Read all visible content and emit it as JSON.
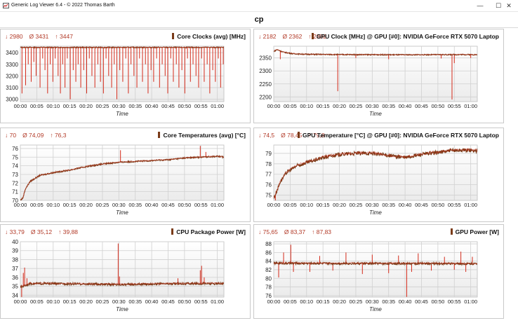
{
  "window": {
    "title": "Generic Log Viewer 6.4 - © 2022 Thomas Barth",
    "controls": {
      "minimize": "—",
      "maximize": "☐",
      "close": "✕"
    }
  },
  "header": {
    "title": "cp"
  },
  "colors": {
    "series": "#7a3b18",
    "spike": "#d42a1a",
    "stats": "#b23a28",
    "grid": "#d0d0d0",
    "plot_bg_top": "#ffffff",
    "plot_bg_bottom": "#ebebeb"
  },
  "panels": [
    {
      "id": "core-clocks",
      "title": "Core Clocks (avg) [MHz]",
      "stats": {
        "min": "↓ 2980",
        "avg": "Ø 3431",
        "max": "↑ 3447"
      },
      "chart_data": {
        "type": "line",
        "xlabel": "Time",
        "x_ticks": [
          "00:00",
          "00:05",
          "00:10",
          "00:15",
          "00:20",
          "00:25",
          "00:30",
          "00:35",
          "00:40",
          "00:45",
          "00:50",
          "00:55",
          "01:00"
        ],
        "y_ticks": [
          3000,
          3100,
          3200,
          3300,
          3400
        ],
        "ylim": [
          2980,
          3455
        ],
        "baseline": 3445,
        "noise": 4,
        "dips": [
          [
            0.5,
            3050
          ],
          [
            1.6,
            3120
          ],
          [
            2.4,
            3300
          ],
          [
            3.3,
            3150
          ],
          [
            4.1,
            3320
          ],
          [
            4.8,
            3200
          ],
          [
            6.0,
            3100
          ],
          [
            6.8,
            3350
          ],
          [
            7.5,
            3250
          ],
          [
            8.3,
            3050
          ],
          [
            9.1,
            3300
          ],
          [
            9.9,
            3150
          ],
          [
            10.6,
            3350
          ],
          [
            11.5,
            3200
          ],
          [
            12.2,
            3050
          ],
          [
            12.9,
            3300
          ],
          [
            13.6,
            3100
          ],
          [
            14.3,
            3350
          ],
          [
            15.2,
            3000
          ],
          [
            16.1,
            3250
          ],
          [
            16.9,
            3150
          ],
          [
            17.6,
            3300
          ],
          [
            18.4,
            3100
          ],
          [
            19.3,
            3250
          ],
          [
            20.2,
            3050
          ],
          [
            21.0,
            3350
          ],
          [
            21.8,
            3200
          ],
          [
            22.7,
            3100
          ],
          [
            23.6,
            3300
          ],
          [
            24.4,
            3150
          ],
          [
            25.3,
            3050
          ],
          [
            26.1,
            3350
          ],
          [
            26.9,
            3200
          ],
          [
            27.8,
            3100
          ],
          [
            28.6,
            3300
          ],
          [
            29.4,
            3000
          ],
          [
            30.3,
            3250
          ],
          [
            31.2,
            3150
          ],
          [
            32.1,
            3350
          ],
          [
            32.9,
            3050
          ],
          [
            33.7,
            3300
          ],
          [
            34.6,
            3200
          ],
          [
            35.5,
            3100
          ],
          [
            36.3,
            3350
          ],
          [
            37.2,
            3150
          ],
          [
            38.1,
            3300
          ],
          [
            38.9,
            3050
          ],
          [
            39.8,
            3250
          ],
          [
            40.6,
            3150
          ],
          [
            41.5,
            3350
          ],
          [
            42.4,
            3100
          ],
          [
            43.2,
            3300
          ],
          [
            44.1,
            3200
          ],
          [
            44.9,
            3050
          ],
          [
            45.8,
            3350
          ],
          [
            46.6,
            3150
          ],
          [
            47.5,
            3300
          ],
          [
            48.3,
            3100
          ],
          [
            49.2,
            3250
          ],
          [
            50.1,
            3050
          ],
          [
            50.9,
            3350
          ],
          [
            51.8,
            3150
          ],
          [
            52.6,
            3300
          ],
          [
            53.5,
            3200
          ],
          [
            54.3,
            3100
          ],
          [
            55.2,
            3350
          ],
          [
            56.0,
            3150
          ],
          [
            56.9,
            3300
          ],
          [
            57.7,
            3050
          ],
          [
            58.6,
            3250
          ],
          [
            59.4,
            3150
          ],
          [
            60.3,
            3350
          ],
          [
            61.0,
            3100
          ],
          [
            61.8,
            3300
          ]
        ]
      }
    },
    {
      "id": "gpu-clock",
      "title": "GPU Clock [MHz] @ GPU [#0]: NVIDIA GeForce RTX 5070 Laptop",
      "stats": {
        "min": "↓ 2182",
        "avg": "Ø 2362",
        "max": "↑ 2392"
      },
      "chart_data": {
        "type": "line",
        "xlabel": "Time",
        "x_ticks": [
          "00:00",
          "00:05",
          "00:10",
          "00:15",
          "00:20",
          "00:25",
          "00:30",
          "00:35",
          "00:40",
          "00:45",
          "00:50",
          "00:55",
          "01:00"
        ],
        "y_ticks": [
          2200,
          2250,
          2300,
          2350
        ],
        "ylim": [
          2182,
          2395
        ],
        "noise": 2,
        "trend": [
          [
            0,
            2375
          ],
          [
            1,
            2382
          ],
          [
            3,
            2372
          ],
          [
            6,
            2366
          ],
          [
            10,
            2364
          ],
          [
            20,
            2363
          ],
          [
            40,
            2362
          ],
          [
            60,
            2363
          ],
          [
            62,
            2362
          ]
        ],
        "dips": [
          [
            2.0,
            2345
          ],
          [
            19.5,
            2222
          ],
          [
            25.0,
            2350
          ],
          [
            35.0,
            2345
          ],
          [
            51.0,
            2348
          ],
          [
            54.3,
            2190
          ],
          [
            55.0,
            2330
          ],
          [
            60.0,
            2350
          ]
        ]
      }
    },
    {
      "id": "core-temp",
      "title": "Core Temperatures (avg) [°C]",
      "stats": {
        "min": "↓ 70",
        "avg": "Ø 74,09",
        "max": "↑ 76,3"
      },
      "chart_data": {
        "type": "line",
        "xlabel": "Time",
        "x_ticks": [
          "00:00",
          "00:05",
          "00:10",
          "00:15",
          "00:20",
          "00:25",
          "00:30",
          "00:35",
          "00:40",
          "00:45",
          "00:50",
          "00:55",
          "01:00"
        ],
        "y_ticks": [
          70,
          71,
          72,
          73,
          74,
          75,
          76
        ],
        "ylim": [
          70,
          76.4
        ],
        "noise": 0.08,
        "trend": [
          [
            0,
            70.0
          ],
          [
            0.8,
            70.3
          ],
          [
            1.5,
            71.3
          ],
          [
            3,
            72.2
          ],
          [
            6,
            72.9
          ],
          [
            10,
            73.2
          ],
          [
            15,
            73.5
          ],
          [
            20,
            73.9
          ],
          [
            25,
            74.2
          ],
          [
            30,
            74.4
          ],
          [
            35,
            74.5
          ],
          [
            40,
            74.6
          ],
          [
            45,
            74.7
          ],
          [
            50,
            74.9
          ],
          [
            55,
            75.0
          ],
          [
            60,
            75.1
          ],
          [
            62,
            75.0
          ]
        ],
        "dips": [
          [
            30.5,
            75.8
          ],
          [
            54.8,
            76.3
          ],
          [
            56.5,
            75.6
          ]
        ]
      }
    },
    {
      "id": "gpu-temp",
      "title": "GPU Temperature [°C] @ GPU [#0]: NVIDIA GeForce RTX 5070 Laptop",
      "stats": {
        "min": "↓ 74,5",
        "avg": "Ø 78,45",
        "max": "↑ 79,8"
      },
      "chart_data": {
        "type": "line",
        "xlabel": "Time",
        "x_ticks": [
          "00:00",
          "00:05",
          "00:10",
          "00:15",
          "00:20",
          "00:25",
          "00:30",
          "00:35",
          "00:40",
          "00:45",
          "00:50",
          "00:55",
          "01:00"
        ],
        "y_ticks": [
          75,
          76,
          77,
          78,
          79
        ],
        "ylim": [
          74.5,
          79.8
        ],
        "noise": 0.18,
        "trend": [
          [
            0,
            74.7
          ],
          [
            0.8,
            75.3
          ],
          [
            2,
            76.3
          ],
          [
            4,
            77.2
          ],
          [
            7,
            77.8
          ],
          [
            10,
            78.1
          ],
          [
            15,
            78.6
          ],
          [
            20,
            78.9
          ],
          [
            25,
            79.0
          ],
          [
            30,
            79.0
          ],
          [
            35,
            78.8
          ],
          [
            40,
            78.6
          ],
          [
            45,
            78.9
          ],
          [
            50,
            79.1
          ],
          [
            55,
            79.3
          ],
          [
            60,
            79.3
          ],
          [
            62,
            79.2
          ]
        ],
        "dips": [
          [
            0.5,
            74.5
          ]
        ]
      }
    },
    {
      "id": "cpu-power",
      "title": "CPU Package Power [W]",
      "stats": {
        "min": "↓ 33,79",
        "avg": "Ø 35,12",
        "max": "↑ 39,88"
      },
      "chart_data": {
        "type": "line",
        "xlabel": "Time",
        "x_ticks": [
          "00:00",
          "00:05",
          "00:10",
          "00:15",
          "00:20",
          "00:25",
          "00:30",
          "00:35",
          "00:40",
          "00:45",
          "00:50",
          "00:55",
          "01:00"
        ],
        "y_ticks": [
          34,
          35,
          36,
          37,
          38,
          39,
          40
        ],
        "ylim": [
          33.79,
          40.0
        ],
        "noise": 0.12,
        "trend": [
          [
            0,
            34.9
          ],
          [
            3,
            35.3
          ],
          [
            10,
            35.3
          ],
          [
            30,
            35.2
          ],
          [
            50,
            35.3
          ],
          [
            62,
            35.3
          ]
        ],
        "dips": [
          [
            0.4,
            33.8
          ],
          [
            0.9,
            36.5
          ],
          [
            1.3,
            37.1
          ],
          [
            2.0,
            35.9
          ],
          [
            29.8,
            39.8
          ],
          [
            30.2,
            36.1
          ],
          [
            48.0,
            35.9
          ],
          [
            54.8,
            36.8
          ],
          [
            55.2,
            37.3
          ],
          [
            56.0,
            36.0
          ]
        ]
      }
    },
    {
      "id": "gpu-power",
      "title": "GPU Power [W]",
      "stats": {
        "min": "↓ 75,65",
        "avg": "Ø 83,37",
        "max": "↑ 87,83"
      },
      "chart_data": {
        "type": "line",
        "xlabel": "Time",
        "x_ticks": [
          "00:00",
          "00:05",
          "00:10",
          "00:15",
          "00:20",
          "00:25",
          "00:30",
          "00:35",
          "00:40",
          "00:45",
          "00:50",
          "00:55",
          "01:00"
        ],
        "y_ticks": [
          76,
          78,
          80,
          82,
          84,
          86,
          88
        ],
        "ylim": [
          75.65,
          88.5
        ],
        "noise": 0.25,
        "trend": [
          [
            0,
            83.5
          ],
          [
            62,
            83.4
          ]
        ],
        "dips": [
          [
            1.5,
            80.2
          ],
          [
            3.0,
            86.0
          ],
          [
            5.2,
            87.8
          ],
          [
            6.0,
            81.5
          ],
          [
            11.0,
            81.5
          ],
          [
            14.0,
            85.2
          ],
          [
            18.0,
            81.8
          ],
          [
            22.0,
            86.0
          ],
          [
            27.0,
            81.0
          ],
          [
            30.0,
            85.5
          ],
          [
            35.0,
            81.2
          ],
          [
            38.0,
            85.3
          ],
          [
            40.5,
            75.7
          ],
          [
            42.0,
            81.5
          ],
          [
            44.0,
            85.8
          ],
          [
            48.0,
            81.8
          ],
          [
            52.0,
            85.0
          ],
          [
            55.0,
            82.0
          ],
          [
            57.0,
            86.2
          ],
          [
            58.5,
            81.5
          ],
          [
            60.5,
            85.0
          ]
        ]
      }
    }
  ]
}
